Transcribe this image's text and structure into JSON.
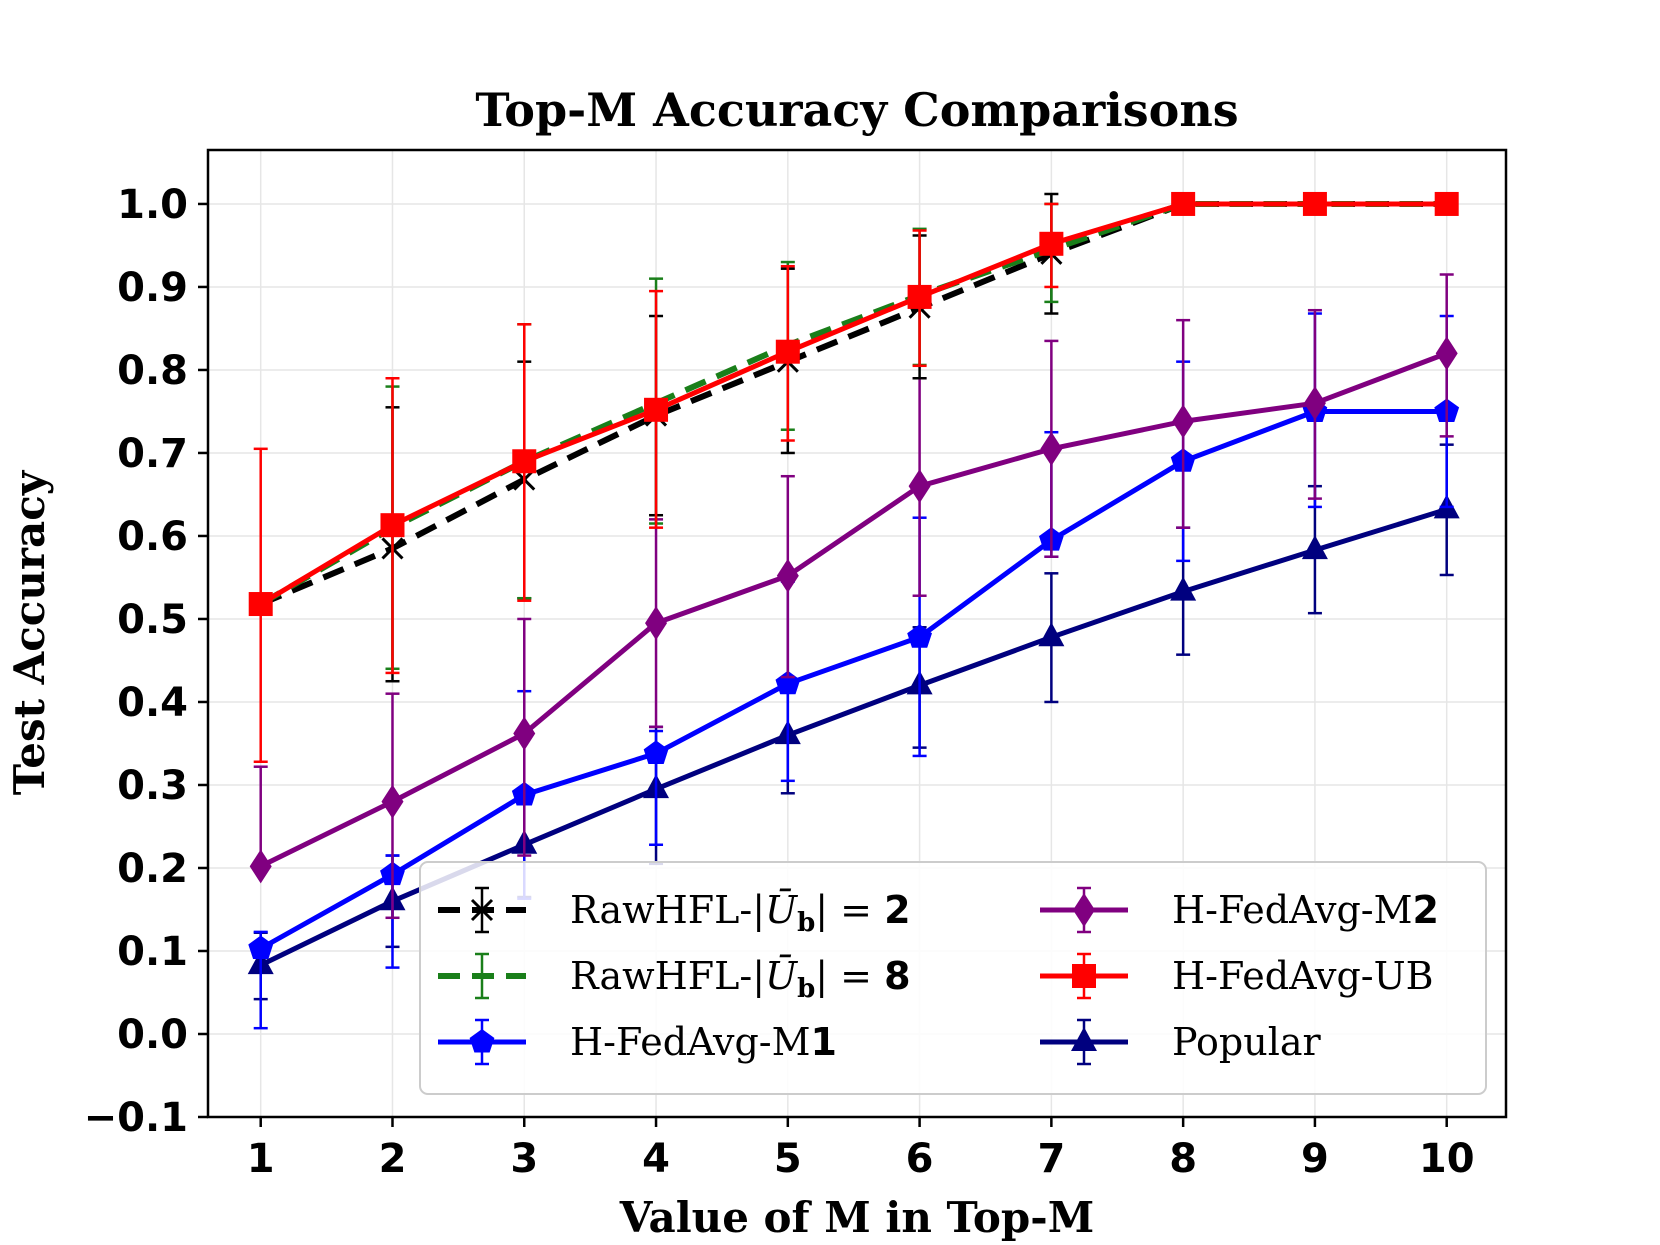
{
  "chart_data": {
    "type": "line",
    "title": "Top-M Accuracy Comparisons",
    "xlabel": "Value of M in Top-M",
    "ylabel": "Test Accuracy",
    "x": [
      1,
      2,
      3,
      4,
      5,
      6,
      7,
      8,
      9,
      10
    ],
    "xticks": [
      "1",
      "2",
      "3",
      "4",
      "5",
      "6",
      "7",
      "8",
      "9",
      "10"
    ],
    "yticks": [
      "−0.1",
      "0.0",
      "0.1",
      "0.2",
      "0.3",
      "0.4",
      "0.5",
      "0.6",
      "0.7",
      "0.8",
      "0.9",
      "1.0"
    ],
    "xlim": [
      0.6,
      10.45
    ],
    "ylim": [
      -0.1,
      1.065
    ],
    "grid": true,
    "legend_position": "lower-right",
    "series": [
      {
        "name": "RawHFL-|Ū_b| = 2",
        "legend_prefix": "RawHFL-|",
        "legend_var": "Ū",
        "legend_sub": "b",
        "legend_suffix": "| = ",
        "legend_bold": "2",
        "color": "#000000",
        "dashed": true,
        "marker": "x",
        "values": [
          0.518,
          0.585,
          0.668,
          0.745,
          0.81,
          0.875,
          0.94,
          1.0,
          1.0,
          1.0
        ],
        "lower": [
          0.518,
          0.425,
          0.525,
          0.625,
          0.7,
          0.79,
          0.868,
          1.0,
          1.0,
          1.0
        ],
        "upper": [
          0.518,
          0.755,
          0.81,
          0.865,
          0.922,
          0.962,
          1.012,
          1.0,
          1.0,
          1.0
        ]
      },
      {
        "name": "RawHFL-|Ū_b| = 8",
        "legend_prefix": "RawHFL-|",
        "legend_var": "Ū",
        "legend_sub": "b",
        "legend_suffix": "| = ",
        "legend_bold": "8",
        "color": "#1a7f1a",
        "dashed": true,
        "marker": "none",
        "values": [
          0.518,
          0.61,
          0.69,
          0.76,
          0.83,
          0.89,
          0.945,
          1.0,
          1.0,
          1.0
        ],
        "lower": [
          0.518,
          0.44,
          0.525,
          0.615,
          0.728,
          0.806,
          0.882,
          1.0,
          1.0,
          1.0
        ],
        "upper": [
          0.518,
          0.78,
          0.855,
          0.91,
          0.93,
          0.97,
          1.0,
          1.0,
          1.0,
          1.0
        ]
      },
      {
        "name": "H-FedAvg-M1",
        "legend_prefix": "H-FedAvg-M",
        "legend_bold": "1",
        "color": "#0000ff",
        "dashed": false,
        "marker": "pentagon",
        "values": [
          0.103,
          0.192,
          0.288,
          0.338,
          0.422,
          0.478,
          0.595,
          0.69,
          0.75,
          0.75
        ],
        "lower": [
          0.007,
          0.08,
          0.163,
          0.228,
          0.305,
          0.335,
          0.575,
          0.57,
          0.635,
          0.635
        ],
        "upper": [
          0.123,
          0.215,
          0.413,
          0.365,
          0.545,
          0.622,
          0.725,
          0.81,
          0.868,
          0.865
        ]
      },
      {
        "name": "H-FedAvg-M2",
        "legend_prefix": "H-FedAvg-M",
        "legend_bold": "2",
        "color": "#800080",
        "dashed": false,
        "marker": "diamond",
        "values": [
          0.202,
          0.28,
          0.362,
          0.495,
          0.552,
          0.66,
          0.705,
          0.738,
          0.76,
          0.82
        ],
        "lower": [
          0.202,
          0.14,
          0.215,
          0.37,
          0.43,
          0.528,
          0.575,
          0.61,
          0.645,
          0.72
        ],
        "upper": [
          0.322,
          0.41,
          0.5,
          0.62,
          0.672,
          0.79,
          0.835,
          0.86,
          0.872,
          0.915
        ]
      },
      {
        "name": "H-FedAvg-UB",
        "legend_prefix": "H-FedAvg-UB",
        "color": "#ff0000",
        "dashed": false,
        "marker": "square",
        "values": [
          0.518,
          0.613,
          0.69,
          0.752,
          0.822,
          0.888,
          0.952,
          1.0,
          1.0,
          1.0
        ],
        "lower": [
          0.328,
          0.435,
          0.522,
          0.61,
          0.715,
          0.805,
          0.9,
          1.0,
          1.0,
          1.0
        ],
        "upper": [
          0.705,
          0.79,
          0.855,
          0.895,
          0.925,
          0.968,
          1.0,
          1.0,
          1.0,
          1.0
        ]
      },
      {
        "name": "Popular",
        "legend_prefix": "Popular",
        "color": "#00007f",
        "dashed": false,
        "marker": "triangle",
        "values": [
          0.083,
          0.16,
          0.228,
          0.295,
          0.36,
          0.42,
          0.478,
          0.533,
          0.583,
          0.632
        ],
        "lower": [
          0.042,
          0.105,
          0.165,
          0.205,
          0.29,
          0.345,
          0.4,
          0.457,
          0.507,
          0.553
        ],
        "upper": [
          0.122,
          0.215,
          0.29,
          0.37,
          0.42,
          0.49,
          0.555,
          0.61,
          0.66,
          0.71
        ]
      }
    ]
  }
}
